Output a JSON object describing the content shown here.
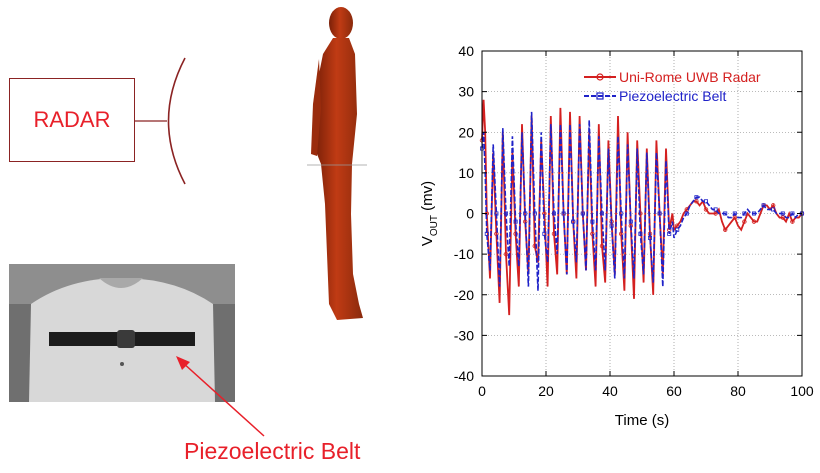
{
  "radar": {
    "label": "RADAR"
  },
  "photo": {
    "caption": "Piezoelectric Belt"
  },
  "colors": {
    "radar_series": "#d42020",
    "belt_series": "#1f22c8",
    "label_red": "#e8202a",
    "body": "#b43412"
  },
  "icons": {
    "human_model": "human-body-icon",
    "antenna": "antenna-arc-icon"
  },
  "chart_data": {
    "type": "line",
    "title": "",
    "xlabel": "Time (s)",
    "ylabel_main": "V",
    "ylabel_sub": "OUT",
    "ylabel_unit": " (mv)",
    "xlim": [
      0,
      100
    ],
    "ylim": [
      -40,
      40
    ],
    "xticks": [
      "0",
      "20",
      "40",
      "60",
      "80",
      "100"
    ],
    "yticks": [
      "-40",
      "-30",
      "-20",
      "-10",
      "0",
      "10",
      "20",
      "30",
      "40"
    ],
    "grid": true,
    "legend_position": "top-right",
    "series": [
      {
        "name": "Uni-Rome UWB Radar",
        "color": "#d42020",
        "marker": "circle",
        "x": [
          0,
          0.5,
          1,
          1.5,
          2.5,
          3.5,
          4.5,
          5.5,
          6.5,
          7.5,
          8.5,
          9.5,
          10.5,
          11.5,
          12.5,
          13.5,
          14.5,
          15.5,
          16.5,
          17.5,
          18.5,
          19.5,
          20.5,
          21.5,
          22.5,
          23.5,
          24.5,
          25.5,
          26.5,
          27.5,
          28.5,
          29.5,
          30.5,
          31.5,
          32.5,
          33.5,
          34.5,
          35.5,
          36.5,
          37.5,
          38.5,
          39.5,
          40.5,
          41.5,
          42.5,
          43.5,
          44.5,
          45.5,
          46.5,
          47.5,
          48.5,
          49.5,
          50.5,
          51.5,
          52.5,
          53.5,
          54.5,
          55.5,
          56.5,
          57.5,
          58.5,
          59.5,
          60,
          61,
          62,
          63,
          64,
          65,
          66,
          67,
          68,
          69,
          70,
          71,
          72,
          73,
          74,
          75,
          76,
          77,
          78,
          79,
          80,
          81,
          82,
          83,
          84,
          85,
          86,
          87,
          88,
          89,
          90,
          91,
          92,
          93,
          94,
          95,
          96,
          97,
          98,
          99,
          100
        ],
        "y": [
          18,
          28,
          20,
          0,
          -16,
          15,
          -5,
          -22,
          20,
          -10,
          -25,
          15,
          -5,
          -18,
          22,
          -2,
          -15,
          24,
          -8,
          -12,
          18,
          0,
          -18,
          24,
          -5,
          -15,
          26,
          0,
          -15,
          25,
          -2,
          -16,
          24,
          0,
          -14,
          20,
          -5,
          -18,
          22,
          -8,
          -17,
          18,
          -2,
          -15,
          24,
          -5,
          -19,
          20,
          -3,
          -21,
          18,
          0,
          -17,
          16,
          -5,
          -20,
          18,
          0,
          -15,
          16,
          -4,
          0,
          -4,
          -3,
          -2,
          0,
          1,
          2,
          3,
          3,
          2,
          3,
          1,
          0,
          0,
          0,
          1,
          -2,
          -4,
          -3,
          -2,
          -1,
          -3,
          -4,
          -2,
          0,
          -1,
          -2,
          -2,
          0,
          2,
          2,
          1,
          2,
          0,
          -1,
          -1,
          -2,
          0,
          -2,
          -1,
          -1,
          0
        ]
      },
      {
        "name": "Piezoelectric Belt",
        "color": "#1f22c8",
        "marker": "square",
        "x": [
          0,
          0.5,
          1,
          1.5,
          2.5,
          3.5,
          4.5,
          5.5,
          6.5,
          7.5,
          8.5,
          9.5,
          10.5,
          11.5,
          12.5,
          13.5,
          14.5,
          15.5,
          16.5,
          17.5,
          18.5,
          19.5,
          20.5,
          21.5,
          22.5,
          23.5,
          24.5,
          25.5,
          26.5,
          27.5,
          28.5,
          29.5,
          30.5,
          31.5,
          32.5,
          33.5,
          34.5,
          35.5,
          36.5,
          37.5,
          38.5,
          39.5,
          40.5,
          41.5,
          42.5,
          43.5,
          44.5,
          45.5,
          46.5,
          47.5,
          48.5,
          49.5,
          50.5,
          51.5,
          52.5,
          53.5,
          54.5,
          55.5,
          56.5,
          57.5,
          58.5,
          59.5,
          60,
          61,
          62,
          63,
          64,
          65,
          66,
          67,
          68,
          69,
          70,
          71,
          72,
          73,
          74,
          75,
          76,
          77,
          78,
          79,
          80,
          81,
          82,
          83,
          84,
          85,
          86,
          87,
          88,
          89,
          90,
          91,
          92,
          93,
          94,
          95,
          96,
          97,
          98,
          99,
          100
        ],
        "y": [
          16,
          20,
          10,
          -5,
          -14,
          17,
          0,
          -18,
          21,
          0,
          -13,
          19,
          -2,
          -13,
          20,
          0,
          -18,
          25,
          0,
          -19,
          20,
          -5,
          -12,
          22,
          0,
          -10,
          22,
          0,
          -15,
          22,
          -2,
          -12,
          22,
          0,
          -14,
          23,
          -2,
          -14,
          19,
          0,
          -14,
          16,
          -3,
          -16,
          19,
          0,
          -16,
          17,
          -2,
          -16,
          16,
          -5,
          -15,
          15,
          -6,
          -17,
          15,
          0,
          -18,
          13,
          -5,
          -2,
          -6,
          -4,
          -3,
          -1,
          0,
          2,
          3,
          4,
          4,
          3,
          3,
          2,
          1,
          1,
          0,
          0,
          0,
          -1,
          -1,
          0,
          -1,
          -1,
          0,
          1,
          0,
          0,
          0,
          1,
          2,
          1,
          1,
          1,
          0,
          0,
          0,
          -1,
          -1,
          0,
          -1,
          0,
          0
        ]
      }
    ]
  }
}
